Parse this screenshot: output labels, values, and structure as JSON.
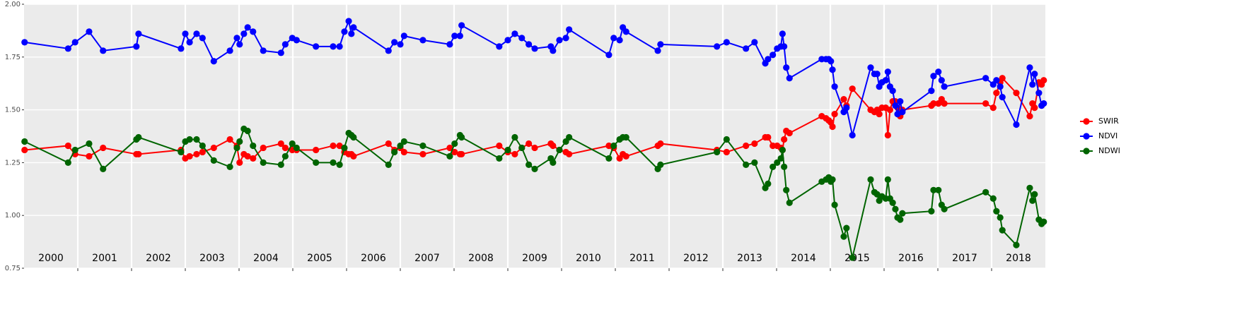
{
  "chart_data": {
    "type": "line",
    "x": [
      2000.01,
      2000.82,
      2000.95,
      2001.21,
      2001.47,
      2002.09,
      2002.13,
      2002.92,
      2003.0,
      2003.08,
      2003.21,
      2003.32,
      2003.53,
      2003.83,
      2003.96,
      2004.01,
      2004.09,
      2004.16,
      2004.26,
      2004.45,
      2004.78,
      2004.86,
      2004.99,
      2005.07,
      2005.43,
      2005.75,
      2005.87,
      2005.96,
      2006.04,
      2006.09,
      2006.13,
      2006.78,
      2006.89,
      2007.0,
      2007.07,
      2007.42,
      2007.92,
      2008.01,
      2008.11,
      2008.14,
      2008.84,
      2009.0,
      2009.13,
      2009.26,
      2009.39,
      2009.5,
      2009.8,
      2009.84,
      2009.96,
      2010.08,
      2010.14,
      2010.88,
      2010.97,
      2011.08,
      2011.14,
      2011.2,
      2011.79,
      2011.84,
      2012.89,
      2013.07,
      2013.43,
      2013.59,
      2013.79,
      2013.84,
      2013.93,
      2014.01,
      2014.08,
      2014.11,
      2014.14,
      2014.18,
      2014.24,
      2014.84,
      2014.92,
      2014.97,
      2015.01,
      2015.04,
      2015.08,
      2015.25,
      2015.3,
      2015.41,
      2015.75,
      2015.82,
      2015.87,
      2015.91,
      2015.96,
      2016.03,
      2016.07,
      2016.11,
      2016.16,
      2016.21,
      2016.25,
      2016.3,
      2016.34,
      2016.88,
      2016.92,
      2017.01,
      2017.07,
      2017.12,
      2017.89,
      2018.03,
      2018.09,
      2018.16,
      2018.2,
      2018.46,
      2018.71,
      2018.76,
      2018.8,
      2018.88,
      2018.93,
      2018.97
    ],
    "series": [
      {
        "name": "SWIR",
        "color": "#ff0000",
        "values": [
          1.31,
          1.33,
          1.29,
          1.28,
          1.32,
          1.29,
          1.29,
          1.31,
          1.27,
          1.28,
          1.29,
          1.3,
          1.32,
          1.36,
          1.33,
          1.25,
          1.29,
          1.28,
          1.27,
          1.32,
          1.34,
          1.32,
          1.31,
          1.31,
          1.31,
          1.33,
          1.33,
          1.3,
          1.29,
          1.29,
          1.28,
          1.34,
          1.31,
          1.32,
          1.3,
          1.29,
          1.32,
          1.3,
          1.29,
          1.29,
          1.33,
          1.3,
          1.29,
          1.32,
          1.34,
          1.32,
          1.34,
          1.33,
          1.31,
          1.3,
          1.29,
          1.33,
          1.32,
          1.27,
          1.29,
          1.28,
          1.33,
          1.34,
          1.31,
          1.3,
          1.33,
          1.34,
          1.37,
          1.37,
          1.33,
          1.33,
          1.32,
          1.31,
          1.36,
          1.4,
          1.39,
          1.47,
          1.46,
          1.45,
          1.44,
          1.42,
          1.48,
          1.55,
          1.52,
          1.6,
          1.5,
          1.49,
          1.5,
          1.48,
          1.51,
          1.51,
          1.38,
          1.5,
          1.54,
          1.54,
          1.51,
          1.47,
          1.5,
          1.52,
          1.53,
          1.53,
          1.55,
          1.53,
          1.53,
          1.51,
          1.58,
          1.63,
          1.65,
          1.58,
          1.47,
          1.53,
          1.51,
          1.63,
          1.62,
          1.64
        ]
      },
      {
        "name": "NDVI",
        "color": "#0000ff",
        "values": [
          1.82,
          1.79,
          1.82,
          1.87,
          1.78,
          1.8,
          1.86,
          1.79,
          1.86,
          1.82,
          1.86,
          1.84,
          1.73,
          1.78,
          1.84,
          1.81,
          1.86,
          1.89,
          1.87,
          1.78,
          1.77,
          1.81,
          1.84,
          1.83,
          1.8,
          1.8,
          1.8,
          1.87,
          1.92,
          1.86,
          1.89,
          1.78,
          1.82,
          1.81,
          1.85,
          1.83,
          1.81,
          1.85,
          1.85,
          1.9,
          1.8,
          1.83,
          1.86,
          1.84,
          1.81,
          1.79,
          1.8,
          1.78,
          1.83,
          1.84,
          1.88,
          1.76,
          1.84,
          1.83,
          1.89,
          1.87,
          1.78,
          1.81,
          1.8,
          1.82,
          1.79,
          1.82,
          1.72,
          1.74,
          1.76,
          1.79,
          1.8,
          1.86,
          1.8,
          1.7,
          1.65,
          1.74,
          1.74,
          1.74,
          1.73,
          1.69,
          1.61,
          1.49,
          1.51,
          1.38,
          1.7,
          1.67,
          1.67,
          1.61,
          1.63,
          1.64,
          1.68,
          1.61,
          1.59,
          1.52,
          1.48,
          1.54,
          1.49,
          1.59,
          1.66,
          1.68,
          1.64,
          1.61,
          1.65,
          1.62,
          1.64,
          1.61,
          1.56,
          1.43,
          1.7,
          1.62,
          1.67,
          1.58,
          1.52,
          1.53
        ]
      },
      {
        "name": "NDWI",
        "color": "#006400",
        "values": [
          1.35,
          1.25,
          1.31,
          1.34,
          1.22,
          1.36,
          1.37,
          1.3,
          1.35,
          1.36,
          1.36,
          1.33,
          1.26,
          1.23,
          1.32,
          1.35,
          1.41,
          1.4,
          1.33,
          1.25,
          1.24,
          1.28,
          1.34,
          1.32,
          1.25,
          1.25,
          1.24,
          1.32,
          1.39,
          1.38,
          1.37,
          1.24,
          1.3,
          1.33,
          1.35,
          1.33,
          1.28,
          1.34,
          1.38,
          1.37,
          1.27,
          1.31,
          1.37,
          1.32,
          1.24,
          1.22,
          1.27,
          1.25,
          1.31,
          1.35,
          1.37,
          1.27,
          1.33,
          1.36,
          1.37,
          1.37,
          1.22,
          1.24,
          1.3,
          1.36,
          1.24,
          1.25,
          1.13,
          1.15,
          1.23,
          1.25,
          1.27,
          1.31,
          1.23,
          1.12,
          1.06,
          1.16,
          1.17,
          1.18,
          1.16,
          1.17,
          1.05,
          0.9,
          0.94,
          0.8,
          1.17,
          1.11,
          1.1,
          1.07,
          1.09,
          1.08,
          1.17,
          1.08,
          1.06,
          1.03,
          0.99,
          0.98,
          1.01,
          1.02,
          1.12,
          1.12,
          1.05,
          1.03,
          1.11,
          1.08,
          1.02,
          0.99,
          0.93,
          0.86,
          1.13,
          1.07,
          1.1,
          0.98,
          0.96,
          0.97
        ]
      }
    ],
    "xlim": [
      2000,
      2019
    ],
    "xticks": [
      {
        "value": 2000.5,
        "label": "2000"
      },
      {
        "value": 2001.5,
        "label": "2001"
      },
      {
        "value": 2002.5,
        "label": "2002"
      },
      {
        "value": 2003.5,
        "label": "2003"
      },
      {
        "value": 2004.5,
        "label": "2004"
      },
      {
        "value": 2005.5,
        "label": "2005"
      },
      {
        "value": 2006.5,
        "label": "2006"
      },
      {
        "value": 2007.5,
        "label": "2007"
      },
      {
        "value": 2008.5,
        "label": "2008"
      },
      {
        "value": 2009.5,
        "label": "2009"
      },
      {
        "value": 2010.5,
        "label": "2010"
      },
      {
        "value": 2011.5,
        "label": "2011"
      },
      {
        "value": 2012.5,
        "label": "2012"
      },
      {
        "value": 2013.5,
        "label": "2013"
      },
      {
        "value": 2014.5,
        "label": "2014"
      },
      {
        "value": 2015.5,
        "label": "2015"
      },
      {
        "value": 2016.5,
        "label": "2016"
      },
      {
        "value": 2017.5,
        "label": "2017"
      },
      {
        "value": 2018.5,
        "label": "2018"
      }
    ],
    "xbreaks": [
      2001,
      2002,
      2003,
      2004,
      2005,
      2006,
      2007,
      2008,
      2009,
      2010,
      2011,
      2012,
      2013,
      2014,
      2015,
      2016,
      2017,
      2018
    ],
    "ylim": [
      0.75,
      2.0
    ],
    "yticks": [
      {
        "value": 0.75,
        "label": "0.75"
      },
      {
        "value": 1.0,
        "label": "1.00"
      },
      {
        "value": 1.25,
        "label": "1.25"
      },
      {
        "value": 1.5,
        "label": "1.50"
      },
      {
        "value": 1.75,
        "label": "1.75"
      },
      {
        "value": 2.0,
        "label": "2.00"
      }
    ],
    "grid": true,
    "legend": "right"
  }
}
